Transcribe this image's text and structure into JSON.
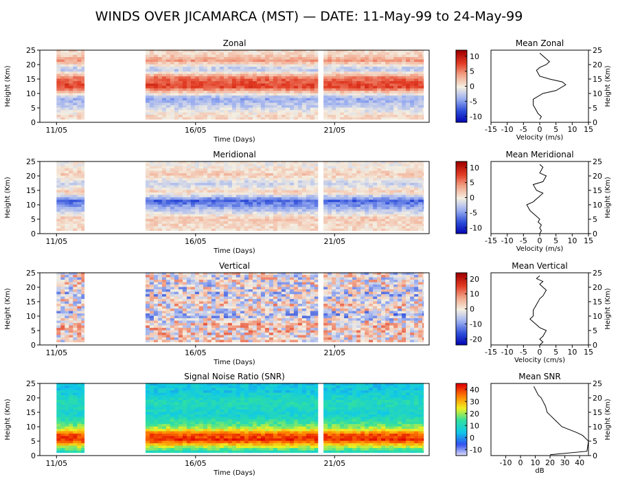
{
  "title": "WINDS OVER JICAMARCA (MST) — DATE: 11-May-99 to 24-May-99",
  "colors": {
    "diverging": [
      "#0000b0",
      "#2a4ad8",
      "#9aaef0",
      "#f4efe2",
      "#f2a58a",
      "#e23a22",
      "#a00000"
    ],
    "rainbow": [
      "#ece8f8",
      "#3050f0",
      "#10c8e8",
      "#30e0a0",
      "#f0f020",
      "#ff8000",
      "#e00000"
    ]
  },
  "chart_data": [
    {
      "type": "heatmap",
      "title": "Zonal",
      "xlabel": "Time (Days)",
      "ylabel": "Height (Km)",
      "x_ticks": [
        "11/05",
        "16/05",
        "21/05"
      ],
      "y_ticks": [
        0,
        5,
        10,
        15,
        20,
        25
      ],
      "ylim": [
        0,
        25
      ],
      "colorbar": {
        "ticks": [
          10,
          5,
          0,
          -5,
          -10
        ],
        "range": [
          -12,
          12
        ],
        "palette": "diverging"
      },
      "data_segments_days": [
        [
          11.0,
          12.0
        ],
        [
          14.2,
          20.4
        ],
        [
          20.6,
          24.2
        ]
      ],
      "profile_bands": [
        {
          "height": 2,
          "value": 1
        },
        {
          "height": 5,
          "value": -2
        },
        {
          "height": 8,
          "value": -4
        },
        {
          "height": 12,
          "value": 8
        },
        {
          "height": 15,
          "value": 6
        },
        {
          "height": 18,
          "value": -3
        },
        {
          "height": 21,
          "value": 4
        },
        {
          "height": 23.5,
          "value": 1
        }
      ],
      "mean_profile": {
        "title": "Mean Zonal",
        "xlabel": "Velocity (m/s)",
        "ylabel": "Height (Km)",
        "xlim": [
          -15,
          15
        ],
        "x_ticks": [
          -15,
          -10,
          -5,
          0,
          5,
          10,
          15
        ],
        "y_ticks": [
          0,
          5,
          10,
          15,
          20,
          25
        ],
        "x": [
          0,
          0.5,
          -0.5,
          -1,
          -2,
          -2,
          1,
          5,
          8,
          7,
          3,
          0,
          -1,
          0,
          2,
          3,
          1,
          0
        ],
        "y": [
          1,
          2,
          3,
          4,
          6,
          8,
          10,
          11,
          13,
          14,
          15,
          16,
          18,
          19,
          20,
          21,
          23,
          24
        ]
      }
    },
    {
      "type": "heatmap",
      "title": "Meridional",
      "xlabel": "Time (Days)",
      "ylabel": "Height (Km)",
      "x_ticks": [
        "11/05",
        "16/05",
        "21/05"
      ],
      "y_ticks": [
        0,
        5,
        10,
        15,
        20,
        25
      ],
      "ylim": [
        0,
        25
      ],
      "colorbar": {
        "ticks": [
          10,
          5,
          0,
          -5,
          -10
        ],
        "range": [
          -12,
          12
        ],
        "palette": "diverging"
      },
      "data_segments_days": [
        [
          11.0,
          12.0
        ],
        [
          14.2,
          20.4
        ],
        [
          20.6,
          24.2
        ]
      ],
      "profile_bands": [
        {
          "height": 2,
          "value": 1
        },
        {
          "height": 5,
          "value": 2
        },
        {
          "height": 8,
          "value": -3
        },
        {
          "height": 11,
          "value": -7
        },
        {
          "height": 14,
          "value": 2
        },
        {
          "height": 17,
          "value": -2
        },
        {
          "height": 20,
          "value": 2
        },
        {
          "height": 23,
          "value": 0
        }
      ],
      "mean_profile": {
        "title": "Mean Meridional",
        "xlabel": "Velocity (m/s)",
        "ylabel": "Height (Km)",
        "xlim": [
          -15,
          15
        ],
        "x_ticks": [
          -15,
          -10,
          -5,
          0,
          5,
          10,
          15
        ],
        "y_ticks": [
          0,
          5,
          10,
          15,
          20,
          25
        ],
        "x": [
          0,
          0.5,
          0,
          0.5,
          -0.5,
          0,
          -1,
          -3,
          -4,
          -2,
          0,
          1,
          -1,
          -2,
          1,
          2,
          0,
          1,
          0
        ],
        "y": [
          0,
          1,
          2,
          3,
          4,
          5,
          6,
          8,
          10,
          11,
          13,
          14,
          15,
          17,
          18,
          20,
          21,
          23,
          24
        ]
      }
    },
    {
      "type": "heatmap",
      "title": "Vertical",
      "xlabel": "Time (Days)",
      "ylabel": "Height (Km)",
      "x_ticks": [
        "11/05",
        "16/05",
        "21/05"
      ],
      "y_ticks": [
        0,
        5,
        10,
        15,
        20,
        25
      ],
      "ylim": [
        0,
        25
      ],
      "colorbar": {
        "ticks": [
          20,
          10,
          0,
          -10,
          -20
        ],
        "range": [
          -24,
          24
        ],
        "palette": "diverging"
      },
      "data_segments_days": [
        [
          11.0,
          12.0
        ],
        [
          14.2,
          20.4
        ],
        [
          20.6,
          24.2
        ]
      ],
      "profile_bands": [
        {
          "height": 3,
          "value": 2
        },
        {
          "height": 7,
          "value": 3
        },
        {
          "height": 10,
          "value": -5
        },
        {
          "height": 13,
          "value": 2
        },
        {
          "height": 17,
          "value": -3
        },
        {
          "height": 21,
          "value": 0
        }
      ],
      "mean_profile": {
        "title": "Mean Vertical",
        "xlabel": "Velocity (cm/s)",
        "ylabel": "Height (Km)",
        "xlim": [
          -15,
          15
        ],
        "x_ticks": [
          -15,
          -10,
          -5,
          0,
          5,
          10,
          15
        ],
        "y_ticks": [
          0,
          5,
          10,
          15,
          20,
          25
        ],
        "x": [
          0,
          1,
          0,
          1,
          2,
          0,
          -1,
          -3,
          -2,
          -2,
          -1,
          0,
          1,
          2,
          0,
          1,
          -1,
          0
        ],
        "y": [
          0,
          1,
          2,
          3,
          5,
          6,
          7,
          9,
          10,
          12,
          14,
          16,
          17,
          19,
          21,
          22,
          23,
          24
        ]
      }
    },
    {
      "type": "heatmap",
      "title": "Signal Noise Ratio (SNR)",
      "xlabel": "Time (Days)",
      "ylabel": "Height (Km)",
      "x_ticks": [
        "11/05",
        "16/05",
        "21/05"
      ],
      "y_ticks": [
        0,
        5,
        10,
        15,
        20,
        25
      ],
      "ylim": [
        0,
        25
      ],
      "colorbar": {
        "ticks": [
          40,
          30,
          20,
          10,
          0,
          -10
        ],
        "range": [
          -15,
          45
        ],
        "palette": "rainbow"
      },
      "data_segments_days": [
        [
          11.0,
          12.0
        ],
        [
          14.2,
          20.4
        ],
        [
          20.6,
          24.2
        ]
      ],
      "profile_bands": [
        {
          "height": 1,
          "value": 12
        },
        {
          "height": 3,
          "value": 25
        },
        {
          "height": 5,
          "value": 42
        },
        {
          "height": 7,
          "value": 38
        },
        {
          "height": 9,
          "value": 22
        },
        {
          "height": 11,
          "value": 15
        },
        {
          "height": 14,
          "value": 8
        },
        {
          "height": 18,
          "value": 12
        },
        {
          "height": 22,
          "value": 6
        }
      ],
      "mean_profile": {
        "title": "Mean SNR",
        "xlabel": "dB",
        "ylabel": "Height (Km)",
        "xlim": [
          -20,
          46
        ],
        "x_ticks": [
          -10,
          0,
          10,
          20,
          30,
          40
        ],
        "y_ticks": [
          0,
          5,
          10,
          15,
          20,
          25
        ],
        "x": [
          20,
          45,
          46,
          42,
          38,
          33,
          28,
          24,
          20,
          18,
          17,
          15,
          14,
          12,
          10,
          9
        ],
        "y": [
          0.3,
          1.5,
          5,
          7,
          8,
          9,
          10,
          12,
          14,
          15,
          17,
          19,
          20,
          21,
          23,
          24
        ]
      }
    }
  ]
}
